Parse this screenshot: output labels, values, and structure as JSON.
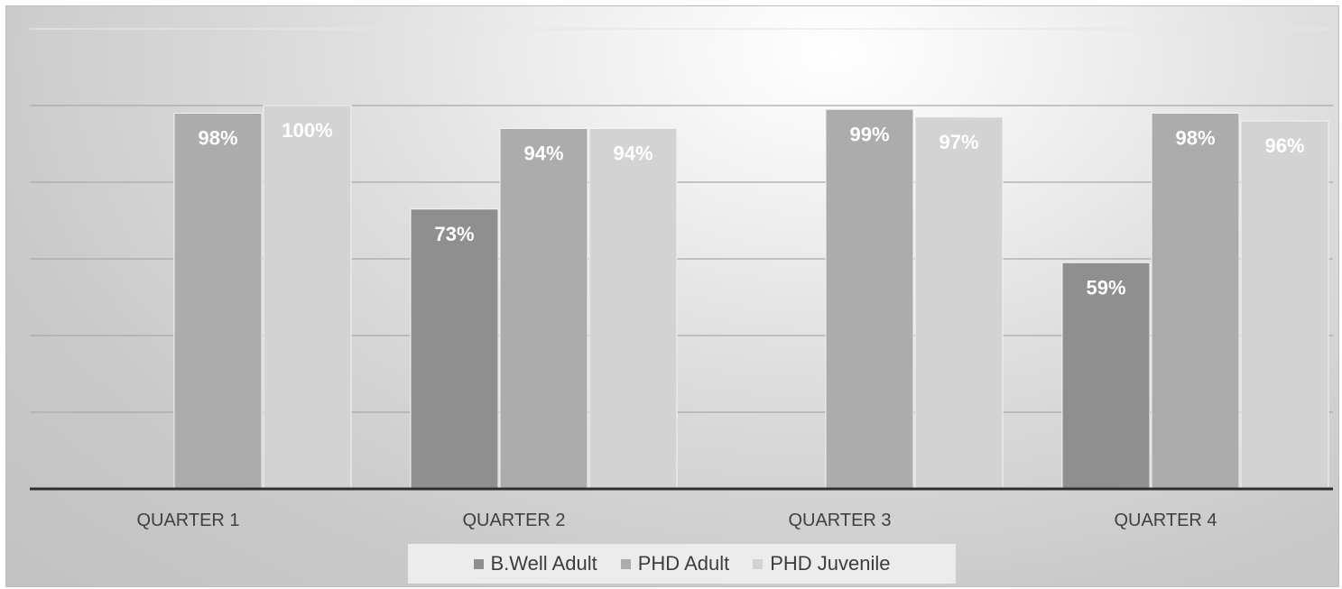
{
  "chart_data": {
    "type": "bar",
    "categories": [
      "QUARTER 1",
      "QUARTER 2",
      "QUARTER 3",
      "QUARTER 4"
    ],
    "series": [
      {
        "name": "B.Well Adult",
        "color": "#8f8f8f",
        "values": [
          null,
          73,
          null,
          59
        ],
        "labels": [
          "",
          "73%",
          "",
          "59%"
        ]
      },
      {
        "name": "PHD Adult",
        "color": "#acacac",
        "values": [
          98,
          94,
          99,
          98
        ],
        "labels": [
          "98%",
          "94%",
          "99%",
          "98%"
        ]
      },
      {
        "name": "PHD Juvenile",
        "color": "#d3d3d3",
        "values": [
          100,
          94,
          97,
          96
        ],
        "labels": [
          "100%",
          "94%",
          "97%",
          "96%"
        ]
      }
    ],
    "title": "",
    "xlabel": "",
    "ylabel": "",
    "ylim": [
      0,
      100
    ],
    "grid": true,
    "legend_position": "bottom"
  }
}
